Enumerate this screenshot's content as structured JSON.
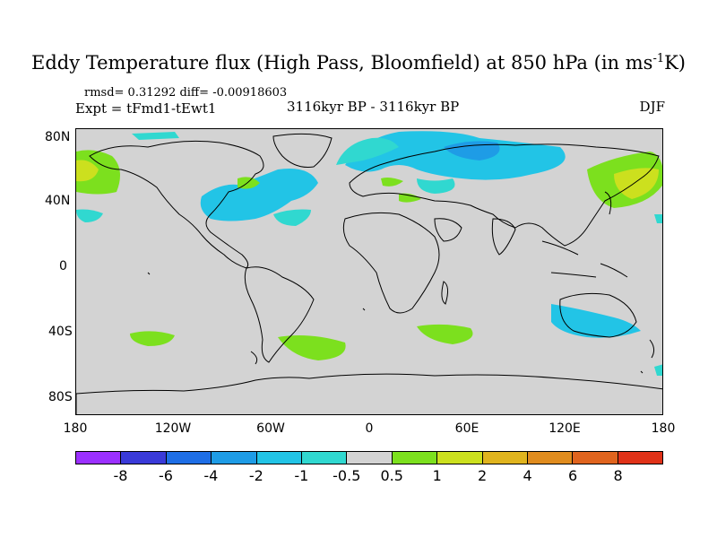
{
  "title": "Eddy Temperature flux (High Pass, Bloomfield) at 850 hPa (in ms",
  "title_sup": "-1",
  "title_end": "K)",
  "stats": "rmsd= 0.31292 diff= -0.00918603",
  "experiment": "Expt = tFmd1-tEwt1",
  "period": "3116kyr BP - 3116kyr BP",
  "season": "DJF",
  "lat_labels": [
    "80N",
    "40N",
    "0",
    "40S",
    "80S"
  ],
  "lon_labels": [
    "180",
    "120W",
    "60W",
    "0",
    "60E",
    "120E",
    "180"
  ],
  "colorbar": {
    "labels": [
      "-8",
      "-6",
      "-4",
      "-2",
      "-1",
      "-0.5",
      "0.5",
      "1",
      "2",
      "4",
      "6",
      "8"
    ],
    "colors": [
      "#9b30ff",
      "#3a3ad8",
      "#1e6ee6",
      "#1e9ce6",
      "#22c4e6",
      "#30d8d0",
      "#d3d3d3",
      "#7ce01e",
      "#cce01e",
      "#e0b41e",
      "#e08c1e",
      "#e0641e",
      "#e03218"
    ]
  }
}
